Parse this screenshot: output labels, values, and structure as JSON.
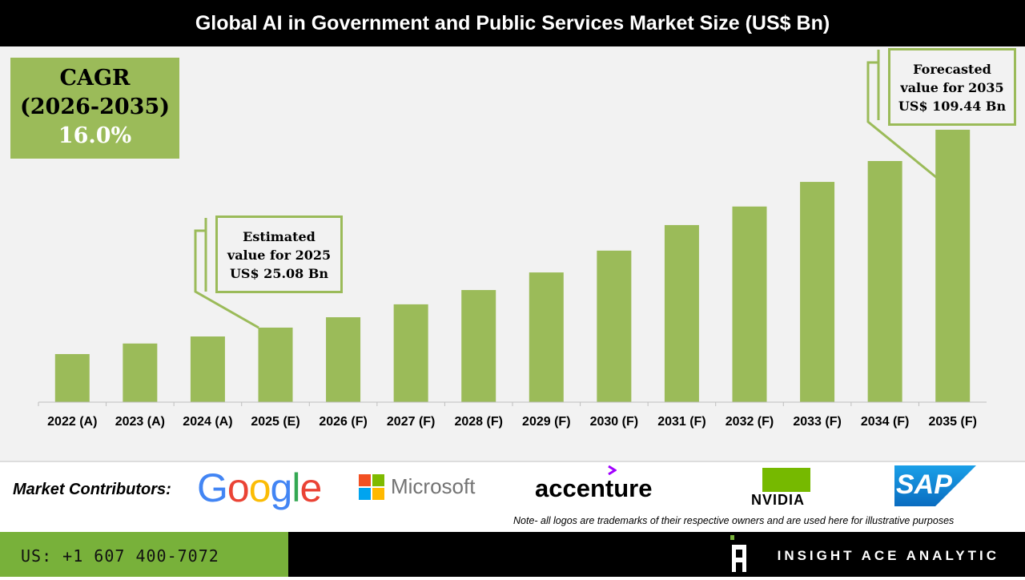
{
  "title": "Global AI in Government and Public Services Market Size (US$ Bn)",
  "cagr": {
    "label": "CAGR",
    "period": "(2026-2035)",
    "value": "16.0%"
  },
  "callouts": {
    "estimated": [
      "Estimated",
      "value for 2025",
      "US$ 25.08 Bn"
    ],
    "forecasted": [
      "Forecasted",
      "value for 2035",
      "US$ 109.44 Bn"
    ]
  },
  "chart_data": {
    "type": "bar",
    "title": "Global AI in Government and Public Services Market Size (US$ Bn)",
    "categories": [
      "2022 (A)",
      "2023 (A)",
      "2024 (A)",
      "2025 (E)",
      "2026 (F)",
      "2027 (F)",
      "2028 (F)",
      "2029 (F)",
      "2030 (F)",
      "2031 (F)",
      "2032 (F)",
      "2033 (F)",
      "2034 (F)",
      "2035 (F)"
    ],
    "values": [
      13.8,
      18.3,
      21.3,
      25.08,
      29.5,
      35.0,
      41.1,
      48.6,
      57.9,
      68.8,
      76.7,
      87.2,
      96.1,
      109.44
    ],
    "bar_color": "#9bbb59",
    "grid": false,
    "xlabel": "",
    "ylabel": ""
  },
  "contributors": {
    "label": "Market Contributors:",
    "logos": [
      "Google",
      "Microsoft",
      "accenture",
      "NVIDIA",
      "SAP"
    ]
  },
  "note": "Note- all logos are trademarks of their respective owners and are used here for illustrative purposes",
  "footer": {
    "phone": "US: +1 607 400-7072",
    "brand": "INSIGHT ACE ANALYTIC"
  },
  "colors": {
    "accent_green": "#9bbb59",
    "footer_green": "#78b13a"
  }
}
